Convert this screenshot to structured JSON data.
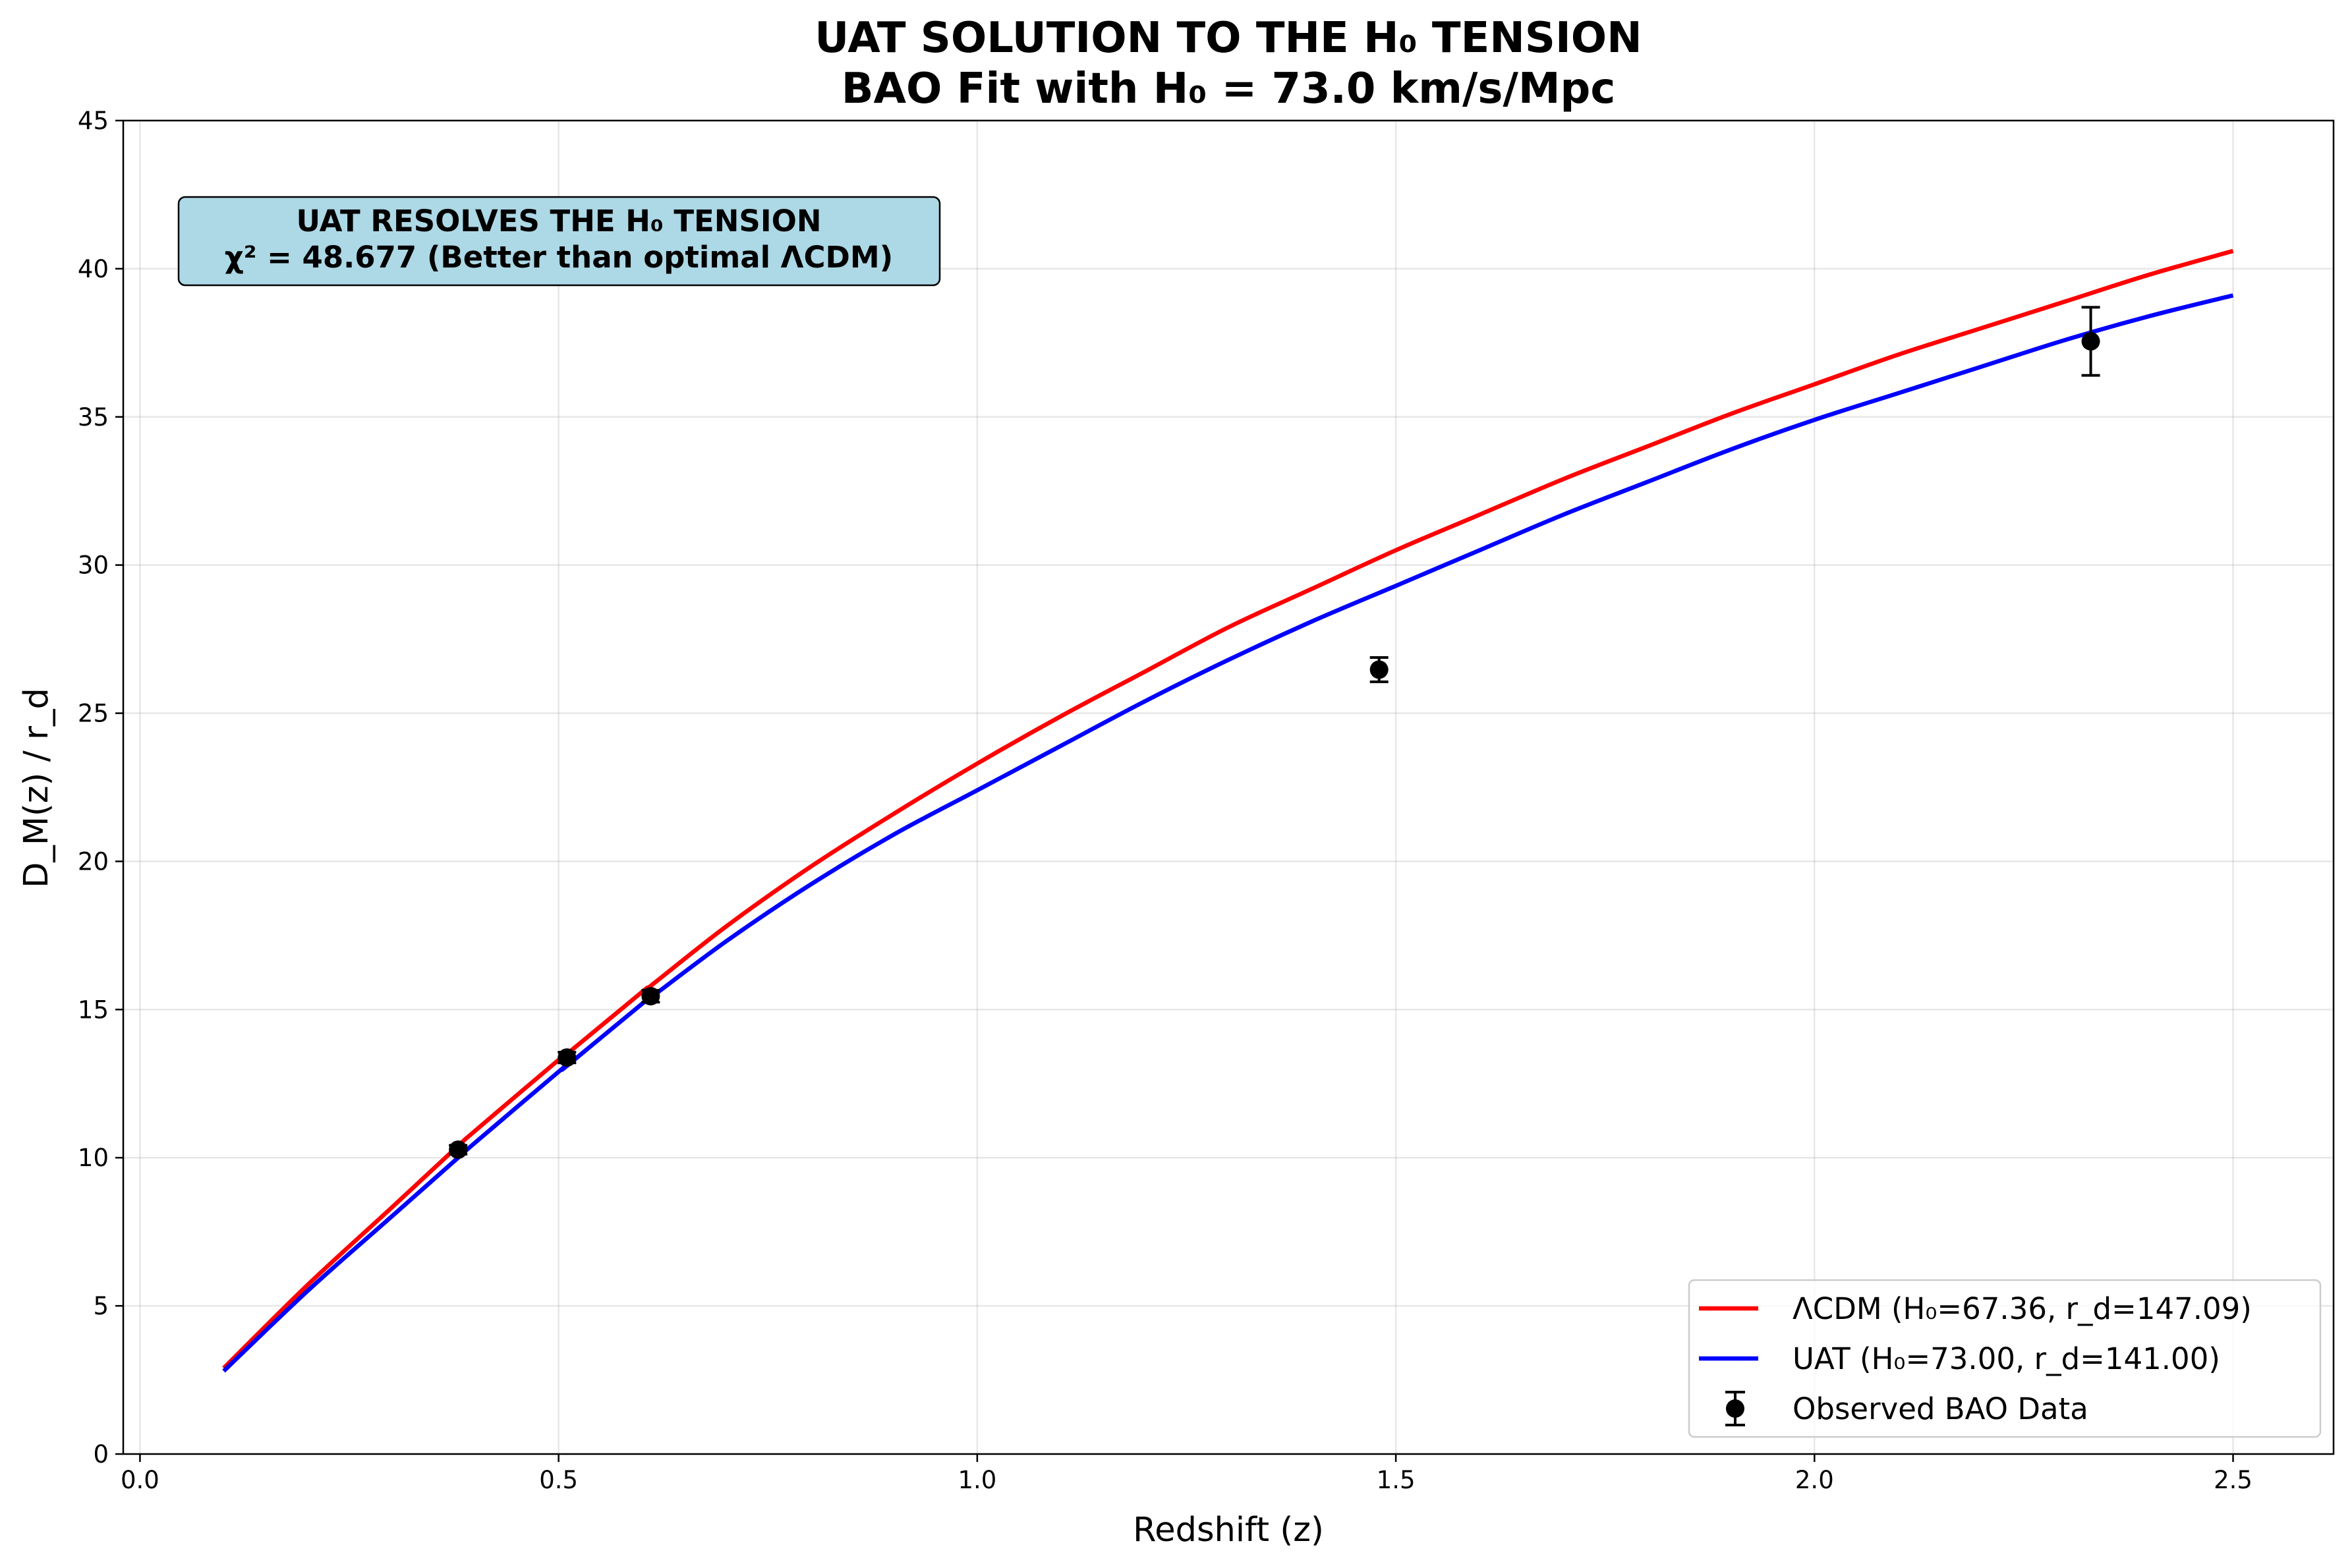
{
  "chart_data": {
    "type": "line",
    "title": "UAT SOLUTION TO THE H₀ TENSION",
    "subtitle": "BAO Fit with H₀ = 73.0 km/s/Mpc",
    "xlabel": "Redshift (z)",
    "ylabel": "D_M(z) / r_d",
    "xlim": [
      -0.02,
      2.62
    ],
    "ylim": [
      0,
      45
    ],
    "xticks": [
      0.0,
      0.5,
      1.0,
      1.5,
      2.0,
      2.5
    ],
    "xtick_labels": [
      "0.0",
      "0.5",
      "1.0",
      "1.5",
      "2.0",
      "2.5"
    ],
    "yticks": [
      0,
      5,
      10,
      15,
      20,
      25,
      30,
      35,
      40,
      45
    ],
    "ytick_labels": [
      "0",
      "5",
      "10",
      "15",
      "20",
      "25",
      "30",
      "35",
      "40",
      "45"
    ],
    "grid": true,
    "legend_position": "lower-right",
    "series": [
      {
        "name": "ΛCDM (H₀=67.36, r_d=147.09)",
        "kind": "line",
        "color": "#ff0000",
        "x": [
          0.1,
          0.2,
          0.3,
          0.38,
          0.4,
          0.5,
          0.51,
          0.6,
          0.61,
          0.7,
          0.8,
          0.9,
          1.0,
          1.1,
          1.2,
          1.3,
          1.4,
          1.5,
          1.6,
          1.7,
          1.8,
          1.9,
          2.0,
          2.1,
          2.2,
          2.3,
          2.4,
          2.5
        ],
        "y": [
          2.9,
          5.7,
          8.3,
          10.4,
          10.9,
          13.3,
          13.5,
          15.6,
          15.8,
          17.8,
          19.8,
          21.6,
          23.3,
          24.9,
          26.4,
          27.9,
          29.2,
          30.5,
          31.7,
          32.9,
          34.0,
          35.1,
          36.1,
          37.1,
          38.0,
          38.9,
          39.8,
          40.6
        ]
      },
      {
        "name": "UAT (H₀=73.00, r_d=141.00)",
        "kind": "line",
        "color": "#0000ff",
        "x": [
          0.1,
          0.2,
          0.3,
          0.38,
          0.4,
          0.5,
          0.51,
          0.6,
          0.61,
          0.7,
          0.8,
          0.9,
          1.0,
          1.1,
          1.2,
          1.3,
          1.4,
          1.5,
          1.6,
          1.7,
          1.8,
          1.9,
          2.0,
          2.1,
          2.2,
          2.3,
          2.4,
          2.5
        ],
        "y": [
          2.8,
          5.5,
          8.0,
          10.0,
          10.5,
          12.9,
          13.1,
          15.2,
          15.4,
          17.3,
          19.2,
          20.9,
          22.4,
          23.9,
          25.4,
          26.8,
          28.1,
          29.3,
          30.5,
          31.7,
          32.8,
          33.9,
          34.9,
          35.8,
          36.7,
          37.6,
          38.4,
          39.1
        ]
      },
      {
        "name": "Observed BAO Data",
        "kind": "errorbar",
        "color": "#000000",
        "x": [
          0.38,
          0.51,
          0.61,
          1.48,
          2.33
        ],
        "y": [
          10.27,
          13.38,
          15.45,
          26.47,
          37.55
        ],
        "yerr": [
          0.15,
          0.18,
          0.2,
          0.41,
          1.15
        ]
      }
    ],
    "annotation": {
      "line1": "UAT RESOLVES THE H₀ TENSION",
      "line2": "χ² = 48.677 (Better than optimal ΛCDM)",
      "position": "top-left",
      "background": "#add8e6"
    }
  }
}
